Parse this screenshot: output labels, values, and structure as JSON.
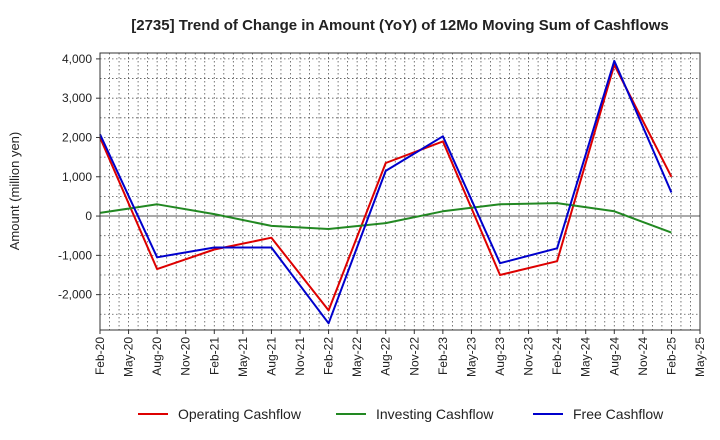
{
  "chart_data": {
    "type": "line",
    "title": "[2735]  Trend of Change in Amount (YoY) of 12Mo Moving Sum of Cashflows",
    "xlabel": "",
    "ylabel": "Amount (million yen)",
    "categories": [
      "Feb-20",
      "May-20",
      "Aug-20",
      "Nov-20",
      "Feb-21",
      "May-21",
      "Aug-21",
      "Nov-21",
      "Feb-22",
      "May-22",
      "Aug-22",
      "Nov-22",
      "Feb-23",
      "May-23",
      "Aug-23",
      "Nov-23",
      "Feb-24",
      "May-24",
      "Aug-24",
      "Nov-24",
      "Feb-25",
      "May-25"
    ],
    "ylim": [
      -2900,
      4150
    ],
    "yticks": [
      -2000,
      -1000,
      0,
      1000,
      2000,
      3000,
      4000
    ],
    "ytick_labels": [
      "-2,000",
      "-1,000",
      "0",
      "1,000",
      "2,000",
      "3,000",
      "4,000"
    ],
    "grid": true,
    "legend_position": "bottom",
    "series": [
      {
        "name": "Operating Cashflow",
        "color": "#dd0000",
        "values": [
          2000,
          null,
          -1350,
          null,
          -850,
          null,
          -550,
          null,
          -2400,
          null,
          1350,
          null,
          1900,
          null,
          -1500,
          null,
          -1150,
          null,
          3850,
          null,
          1000,
          null
        ]
      },
      {
        "name": "Investing Cashflow",
        "color": "#228822",
        "values": [
          80,
          null,
          300,
          null,
          50,
          null,
          -250,
          null,
          -330,
          null,
          -180,
          null,
          120,
          null,
          300,
          null,
          330,
          null,
          120,
          null,
          -420,
          null
        ]
      },
      {
        "name": "Free Cashflow",
        "color": "#0000cc",
        "values": [
          2080,
          null,
          -1050,
          null,
          -800,
          null,
          -800,
          null,
          -2730,
          null,
          1150,
          null,
          2030,
          null,
          -1200,
          null,
          -820,
          null,
          3950,
          null,
          600,
          null
        ]
      }
    ]
  }
}
